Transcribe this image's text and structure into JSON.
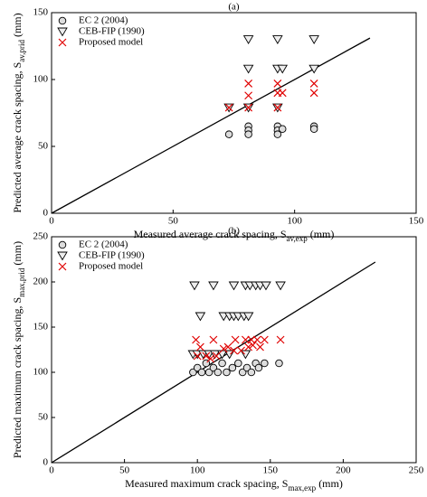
{
  "chart_data": [
    {
      "type": "scatter",
      "title": "(a)",
      "xlabel": {
        "text": "Measured average crack spacing,",
        "symbol": "S",
        "sub": "av,exp",
        "unit": "(mm)"
      },
      "ylabel": {
        "text": "Predicted average crack spacing,",
        "symbol": "S",
        "sub": "av,prid",
        "unit": "(mm)"
      },
      "xlim": [
        0,
        150
      ],
      "ylim": [
        0,
        150
      ],
      "xticks": [
        0,
        50,
        100,
        150
      ],
      "yticks": [
        0,
        50,
        100,
        150
      ],
      "line": {
        "x": [
          0,
          131
        ],
        "y": [
          0,
          131
        ],
        "color": "#000000"
      },
      "series": [
        {
          "name": "EC 2 (2004)",
          "marker": "circle",
          "color": "#000000",
          "x": [
            73,
            81,
            81,
            81,
            93,
            93,
            93,
            95,
            108,
            108
          ],
          "values": [
            59,
            65,
            62,
            59,
            65,
            62,
            59,
            63,
            65,
            63
          ]
        },
        {
          "name": "CEB-FIP (1990)",
          "marker": "triangle",
          "color": "#000000",
          "x": [
            73,
            81,
            81,
            81,
            93,
            93,
            95,
            93,
            108,
            108
          ],
          "values": [
            79,
            130,
            108,
            79,
            130,
            108,
            108,
            79,
            130,
            108
          ]
        },
        {
          "name": "Proposed model",
          "marker": "x",
          "color": "#e00000",
          "x": [
            73,
            81,
            81,
            81,
            93,
            93,
            95,
            93,
            108,
            108
          ],
          "values": [
            79,
            97,
            88,
            79,
            97,
            90,
            90,
            79,
            97,
            90
          ]
        }
      ]
    },
    {
      "type": "scatter",
      "title": "(b)",
      "xlabel": {
        "text": "Measured maximum crack spacing,",
        "symbol": "S",
        "sub": "max,exp",
        "unit": "(mm)"
      },
      "ylabel": {
        "text": "Predicted maximum crack spacing,",
        "symbol": "S",
        "sub": "max,prid",
        "unit": "(mm)"
      },
      "xlim": [
        0,
        250
      ],
      "ylim": [
        0,
        250
      ],
      "xticks": [
        0,
        50,
        100,
        150,
        200,
        250
      ],
      "yticks": [
        0,
        50,
        100,
        150,
        200,
        250
      ],
      "line": {
        "x": [
          0,
          222
        ],
        "y": [
          0,
          222
        ],
        "color": "#000000"
      },
      "series": [
        {
          "name": "EC 2 (2004)",
          "marker": "circle",
          "color": "#000000",
          "x": [
            97,
            100,
            103,
            106,
            108,
            111,
            114,
            117,
            120,
            124,
            128,
            131,
            134,
            137,
            140,
            142,
            146,
            156
          ],
          "values": [
            100,
            105,
            100,
            110,
            100,
            105,
            100,
            110,
            100,
            105,
            110,
            100,
            105,
            100,
            110,
            105,
            110,
            110
          ]
        },
        {
          "name": "CEB-FIP (1990)",
          "marker": "triangle",
          "color": "#000000",
          "x": [
            98,
            111,
            125,
            133,
            136,
            140,
            143,
            147,
            157,
            102,
            118,
            122,
            125,
            128,
            132,
            135,
            97,
            100,
            104,
            108,
            112,
            117,
            122,
            133
          ],
          "values": [
            196,
            196,
            196,
            196,
            196,
            196,
            196,
            196,
            196,
            162,
            162,
            162,
            162,
            162,
            162,
            162,
            120,
            120,
            120,
            120,
            120,
            120,
            120,
            120
          ]
        },
        {
          "name": "Proposed model",
          "marker": "x",
          "color": "#e00000",
          "x": [
            99,
            111,
            126,
            133,
            137,
            141,
            146,
            157,
            102,
            106,
            109,
            113,
            118,
            121,
            125,
            130,
            135,
            138,
            143,
            100
          ],
          "values": [
            136,
            136,
            136,
            136,
            136,
            136,
            136,
            136,
            128,
            118,
            115,
            118,
            126,
            128,
            124,
            124,
            128,
            130,
            128,
            118
          ]
        }
      ]
    }
  ]
}
